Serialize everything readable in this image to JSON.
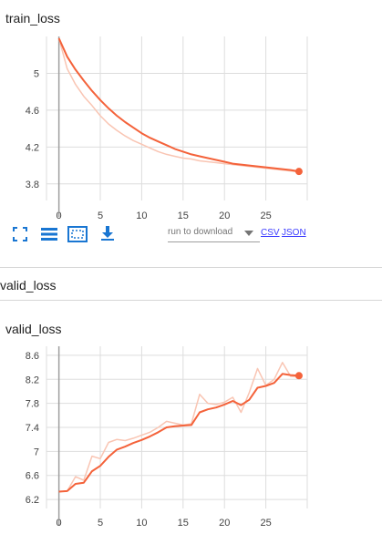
{
  "cards": {
    "train": {
      "title": "train_loss"
    },
    "valid": {
      "title": "valid_loss"
    }
  },
  "section": {
    "title": "valid_loss"
  },
  "toolbar": {
    "icons": [
      "fit-domain-icon",
      "data-table-icon",
      "zoom-box-icon",
      "download-icon"
    ],
    "download_placeholder": "run to download",
    "csv_label": "CSV",
    "json_label": "JSON"
  },
  "colors": {
    "line": "#f4623a",
    "line_raw": "#f9c5b3",
    "grid": "#dddddd",
    "axis": "#9e9e9e",
    "toolbar": "#1976d2"
  },
  "chart_data": [
    {
      "type": "line",
      "title": "train_loss",
      "xlim": [
        -1.5,
        30
      ],
      "ylim": [
        3.62,
        5.4
      ],
      "x_ticks": [
        0,
        5,
        10,
        15,
        20,
        25
      ],
      "y_ticks": [
        3.8,
        4.2,
        4.6,
        5
      ],
      "series": [
        {
          "kind": "raw",
          "x": [
            0,
            1,
            2,
            3,
            4,
            5,
            6,
            7,
            8,
            9,
            10,
            11,
            12,
            13,
            14,
            15,
            16,
            17,
            18,
            19,
            20,
            21,
            22,
            23,
            24,
            25,
            26,
            27,
            28,
            29
          ],
          "y": [
            5.38,
            5.05,
            4.88,
            4.75,
            4.65,
            4.54,
            4.45,
            4.38,
            4.32,
            4.27,
            4.23,
            4.19,
            4.15,
            4.12,
            4.1,
            4.08,
            4.07,
            4.05,
            4.04,
            4.03,
            4.02,
            4.01,
            4.0,
            3.99,
            3.98,
            3.97,
            3.96,
            3.95,
            3.94,
            3.93
          ]
        },
        {
          "kind": "smoothed",
          "x": [
            0,
            1,
            2,
            3,
            4,
            5,
            6,
            7,
            8,
            9,
            10,
            11,
            12,
            13,
            14,
            15,
            16,
            17,
            18,
            19,
            20,
            21,
            22,
            23,
            24,
            25,
            26,
            27,
            28,
            29
          ],
          "y": [
            5.38,
            5.18,
            5.04,
            4.92,
            4.81,
            4.71,
            4.62,
            4.54,
            4.47,
            4.41,
            4.35,
            4.3,
            4.26,
            4.22,
            4.18,
            4.15,
            4.12,
            4.1,
            4.08,
            4.06,
            4.04,
            4.02,
            4.01,
            4.0,
            3.99,
            3.98,
            3.97,
            3.96,
            3.95,
            3.935
          ]
        }
      ]
    },
    {
      "type": "line",
      "title": "valid_loss",
      "xlim": [
        -1.5,
        30
      ],
      "ylim": [
        6.05,
        8.75
      ],
      "x_ticks": [
        0,
        5,
        10,
        15,
        20,
        25
      ],
      "y_ticks": [
        6.2,
        6.6,
        7,
        7.4,
        7.8,
        8.2,
        8.6
      ],
      "series": [
        {
          "kind": "raw",
          "x": [
            0,
            1,
            2,
            3,
            4,
            5,
            6,
            7,
            8,
            9,
            10,
            11,
            12,
            13,
            14,
            15,
            16,
            17,
            18,
            19,
            20,
            21,
            22,
            23,
            24,
            25,
            26,
            27,
            28,
            29
          ],
          "y": [
            6.33,
            6.34,
            6.58,
            6.52,
            6.92,
            6.88,
            7.15,
            7.2,
            7.18,
            7.22,
            7.27,
            7.32,
            7.4,
            7.5,
            7.47,
            7.44,
            7.46,
            7.95,
            7.8,
            7.78,
            7.82,
            7.9,
            7.65,
            7.98,
            8.38,
            8.1,
            8.2,
            8.48,
            8.25,
            8.24
          ]
        },
        {
          "kind": "smoothed",
          "x": [
            0,
            1,
            2,
            3,
            4,
            5,
            6,
            7,
            8,
            9,
            10,
            11,
            12,
            13,
            14,
            15,
            16,
            17,
            18,
            19,
            20,
            21,
            22,
            23,
            24,
            25,
            26,
            27,
            28,
            29
          ],
          "y": [
            6.33,
            6.34,
            6.46,
            6.48,
            6.67,
            6.76,
            6.91,
            7.03,
            7.08,
            7.14,
            7.19,
            7.25,
            7.32,
            7.4,
            7.42,
            7.43,
            7.44,
            7.65,
            7.7,
            7.73,
            7.78,
            7.84,
            7.77,
            7.86,
            8.06,
            8.09,
            8.14,
            8.29,
            8.27,
            8.26
          ]
        }
      ]
    }
  ]
}
